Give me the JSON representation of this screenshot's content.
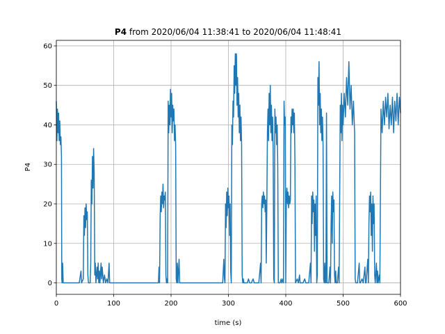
{
  "chart_data": {
    "type": "line",
    "title_bold": "P4",
    "title": "from 2020/06/04 11:38:41 to 2020/06/04 11:48:41",
    "xlabel": "time (s)",
    "ylabel": "P4",
    "xlim": [
      0,
      600
    ],
    "ylim": [
      -2.9,
      61.4
    ],
    "xticks": [
      0,
      100,
      200,
      300,
      400,
      500,
      600
    ],
    "yticks": [
      0,
      10,
      20,
      30,
      40,
      50,
      60
    ],
    "grid": true,
    "color": "#1f77b4",
    "x": [
      0,
      1,
      2,
      3,
      4,
      5,
      6,
      7,
      8,
      9,
      9.5,
      10,
      11,
      12,
      15,
      20,
      25,
      30,
      35,
      40,
      43,
      44,
      47,
      48,
      49,
      50,
      51,
      52,
      53,
      54,
      55,
      56,
      59,
      60,
      61,
      62,
      63,
      64,
      65,
      66,
      67,
      68,
      69,
      71,
      72,
      73,
      74,
      75,
      76,
      78,
      79,
      80,
      82,
      84,
      86,
      88,
      90,
      92,
      93,
      100,
      120,
      140,
      160,
      178,
      179,
      180,
      181,
      182,
      183,
      184,
      185,
      186,
      187,
      188,
      189,
      190,
      191,
      192,
      193,
      194,
      195,
      196,
      197,
      198,
      199,
      200,
      201,
      202,
      203,
      204,
      205,
      206,
      207,
      208,
      209,
      210,
      211,
      212,
      214,
      215,
      230,
      250,
      270,
      290,
      292,
      293,
      294,
      295,
      296,
      297,
      298,
      299,
      300,
      301,
      302,
      303,
      304,
      305,
      306,
      307,
      308,
      309,
      310,
      311,
      312,
      313,
      314,
      315,
      316,
      317,
      318,
      319,
      320,
      321,
      322,
      323,
      324,
      325,
      326,
      327,
      330,
      333,
      335,
      337,
      340,
      343,
      345,
      350,
      353,
      356,
      357,
      358,
      359,
      360,
      361,
      362,
      363,
      364,
      365,
      366,
      367,
      368,
      369,
      370,
      371,
      372,
      373,
      374,
      375,
      376,
      377,
      378,
      379,
      380,
      381,
      382,
      383,
      384,
      385,
      386,
      387,
      390,
      392,
      393,
      395,
      396,
      397,
      398,
      399,
      400,
      401,
      402,
      403,
      404,
      405,
      406,
      407,
      408,
      409,
      410,
      411,
      412,
      413,
      414,
      415,
      416,
      417,
      420,
      422,
      424,
      425,
      430,
      433,
      435,
      440,
      443,
      444,
      445,
      446,
      447,
      448,
      449,
      450,
      451,
      452,
      453,
      454,
      455,
      456,
      457,
      458,
      459,
      460,
      461,
      462,
      463,
      464,
      465,
      466,
      467,
      468,
      469,
      470,
      471,
      472,
      475,
      477,
      478,
      479,
      480,
      481,
      482,
      483,
      484,
      485,
      486,
      487,
      488,
      490,
      492,
      493,
      495,
      496,
      497,
      498,
      499,
      500,
      502,
      504,
      506,
      508,
      510,
      512,
      514,
      516,
      518,
      520,
      521,
      522,
      525,
      528,
      529,
      530,
      533,
      535,
      538,
      539,
      540,
      543,
      544,
      545,
      546,
      547,
      548,
      549,
      550,
      551,
      552,
      553,
      554,
      555,
      556,
      558,
      559,
      560,
      561,
      563,
      564,
      566,
      568,
      570,
      572,
      574,
      576,
      578,
      580,
      582,
      584,
      586,
      588,
      590,
      592,
      594,
      596,
      598,
      600
    ],
    "values": [
      46,
      36,
      44,
      38,
      43,
      36,
      41,
      35,
      37,
      32,
      1,
      0,
      5,
      0,
      0,
      0,
      0,
      0,
      0,
      0,
      3,
      0,
      1,
      17,
      12,
      19,
      14,
      20,
      16,
      18,
      2,
      0,
      0,
      5,
      26,
      20,
      32,
      24,
      34,
      28,
      2,
      5,
      0,
      4,
      1,
      5,
      0,
      3,
      0,
      5,
      1,
      4,
      0,
      2,
      0,
      1,
      0,
      5,
      0,
      0,
      0,
      0,
      0,
      0,
      4,
      0,
      17,
      22,
      18,
      23,
      20,
      25,
      19,
      22,
      21,
      23,
      2,
      0,
      1,
      0,
      46,
      38,
      45,
      40,
      49,
      42,
      48,
      38,
      45,
      41,
      44,
      36,
      40,
      35,
      1,
      0,
      5,
      0,
      6,
      0,
      0,
      0,
      0,
      0,
      6,
      1,
      0,
      20,
      14,
      23,
      17,
      24,
      19,
      22,
      12,
      20,
      3,
      0,
      40,
      35,
      46,
      42,
      55,
      48,
      58,
      50,
      58,
      45,
      52,
      42,
      48,
      38,
      45,
      36,
      42,
      35,
      2,
      0,
      1,
      0,
      0,
      0,
      1,
      0,
      0,
      1,
      0,
      0,
      0,
      5,
      0,
      20,
      22,
      19,
      23,
      20,
      22,
      18,
      21,
      5,
      20,
      38,
      44,
      36,
      48,
      40,
      50,
      38,
      45,
      36,
      42,
      34,
      1,
      0,
      44,
      38,
      42,
      35,
      40,
      30,
      0,
      0,
      1,
      0,
      1,
      0,
      46,
      40,
      42,
      0,
      22,
      24,
      20,
      23,
      19,
      22,
      20,
      21,
      42,
      38,
      44,
      40,
      44,
      38,
      43,
      30,
      0,
      1,
      0,
      2,
      0,
      0,
      1,
      0,
      0,
      5,
      0,
      22,
      15,
      23,
      18,
      21,
      8,
      20,
      12,
      22,
      0,
      2,
      52,
      45,
      56,
      40,
      48,
      38,
      44,
      36,
      42,
      35,
      1,
      0,
      5,
      0,
      0,
      43,
      0,
      0,
      4,
      0,
      15,
      22,
      10,
      23,
      18,
      21,
      2,
      0,
      3,
      0,
      0,
      4,
      0,
      45,
      38,
      48,
      36,
      45,
      40,
      48,
      42,
      52,
      45,
      56,
      44,
      50,
      40,
      46,
      38,
      1,
      0,
      0,
      5,
      0,
      0,
      1,
      0,
      4,
      0,
      0,
      6,
      0,
      15,
      22,
      18,
      23,
      12,
      20,
      8,
      22,
      15,
      20,
      2,
      0,
      5,
      0,
      3,
      0,
      2,
      0,
      44,
      38,
      46,
      40,
      47,
      42,
      48,
      39,
      45,
      40,
      47,
      38,
      46,
      41,
      48,
      40,
      47,
      43
    ]
  }
}
